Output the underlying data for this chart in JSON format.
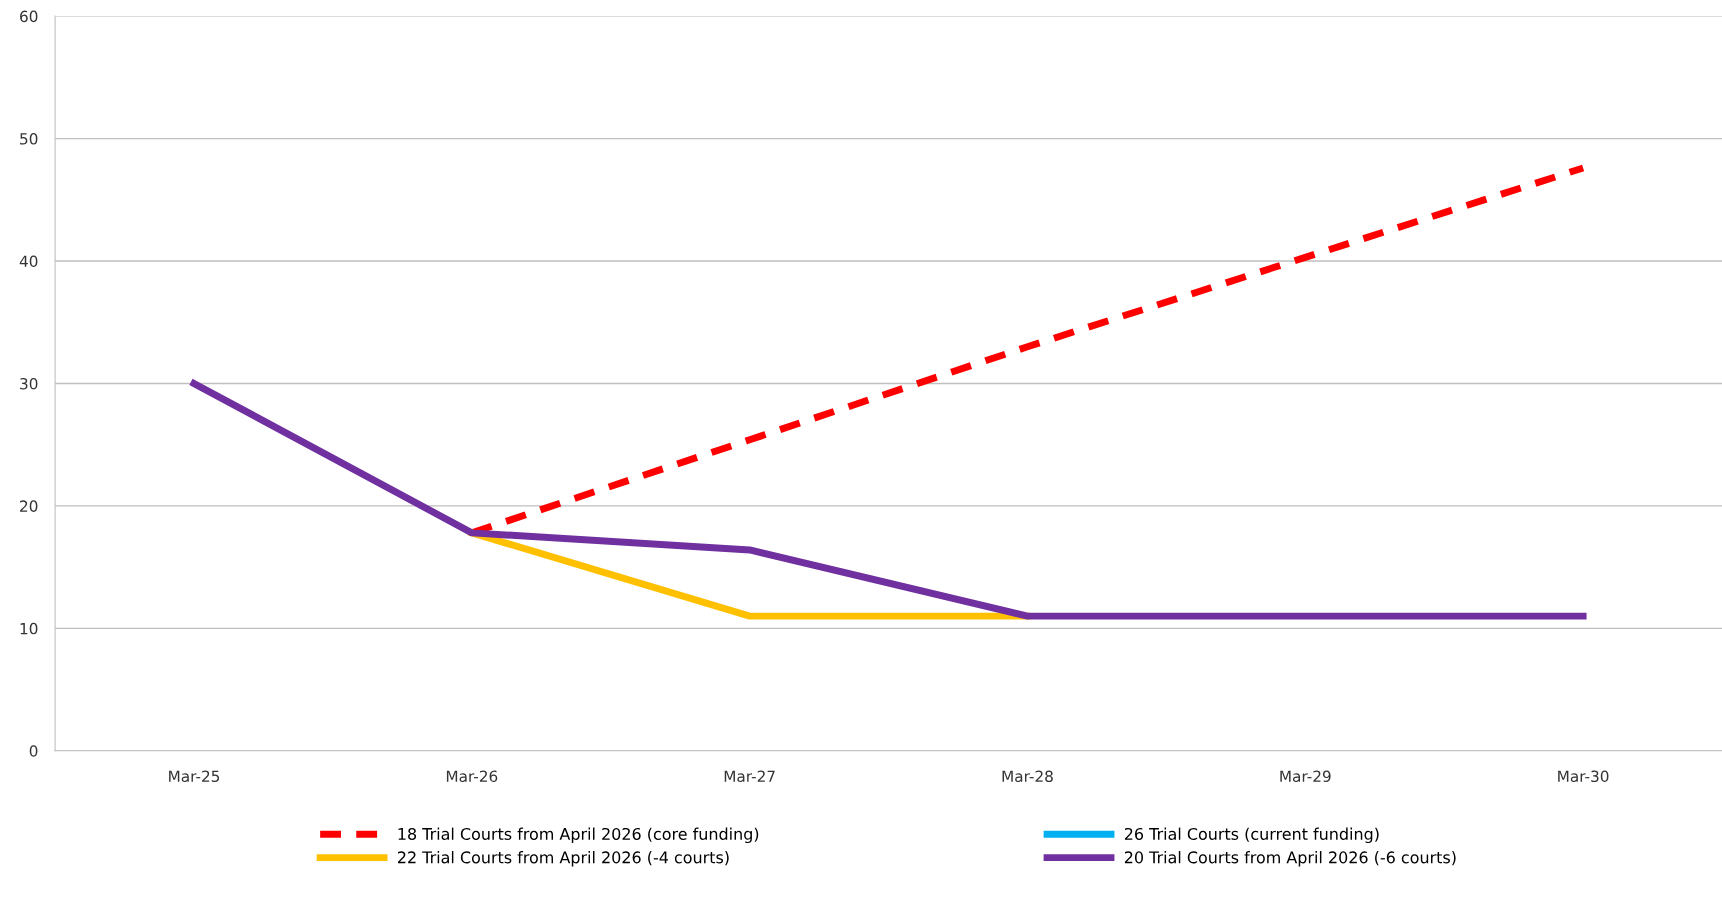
{
  "chart_data": {
    "type": "line",
    "categories": [
      "Mar-25",
      "Mar-26",
      "Mar-27",
      "Mar-28",
      "Mar-29",
      "Mar-30"
    ],
    "series": [
      {
        "name": "18 Trial Courts from April 2026 (core funding)",
        "color": "#ff0000",
        "line_style": "dashed",
        "values": [
          null,
          17.8,
          25.4,
          33,
          40.3,
          47.6
        ]
      },
      {
        "name": "26 Trial Courts (current funding)",
        "color": "#00b0f0",
        "values": [
          null,
          null,
          null,
          null,
          null,
          null
        ]
      },
      {
        "name": "22 Trial Courts from April 2026 (-4 courts)",
        "color": "#ffc000",
        "values": [
          null,
          17.8,
          11,
          11,
          null,
          null
        ]
      },
      {
        "name": "20 Trial Courts from April 2026 (-6 courts)",
        "color": "#7030a0",
        "values": [
          30,
          17.8,
          16.4,
          11,
          11,
          11
        ]
      }
    ],
    "ylim": [
      0,
      60
    ],
    "yticks": [
      0,
      10,
      20,
      30,
      40,
      50,
      60
    ],
    "grid": "y",
    "legend": "bottom",
    "marker": "none"
  }
}
